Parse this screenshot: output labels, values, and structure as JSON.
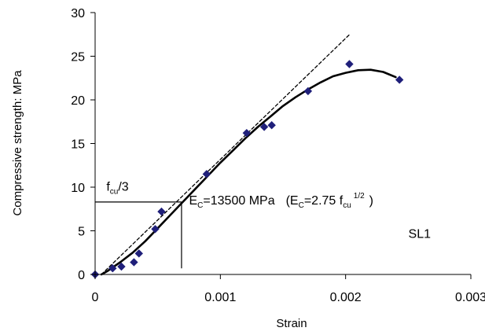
{
  "chart_data": {
    "type": "scatter",
    "title": "",
    "xlabel": "Strain",
    "ylabel": "Compressive strength: MPa",
    "xlim": [
      0,
      0.003
    ],
    "ylim": [
      0,
      30
    ],
    "x_ticks": [
      0,
      0.001,
      0.002,
      0.003
    ],
    "x_tick_labels": [
      "0",
      "0.001",
      "0.002",
      "0.003"
    ],
    "y_ticks": [
      0,
      5,
      10,
      15,
      20,
      25,
      30
    ],
    "y_tick_labels": [
      "0",
      "5",
      "10",
      "15",
      "20",
      "25",
      "30"
    ],
    "grid": false,
    "legend": "none",
    "series": [
      {
        "kind": "scatter",
        "marker": "diamond",
        "color": "#1f1f7a",
        "points": [
          [
            0.0,
            0.0
          ],
          [
            0.00014,
            0.7
          ],
          [
            0.00021,
            0.9
          ],
          [
            0.00031,
            1.4
          ],
          [
            0.00035,
            2.4
          ],
          [
            0.00048,
            5.2
          ],
          [
            0.00053,
            7.2
          ],
          [
            0.00089,
            11.5
          ],
          [
            0.00121,
            16.2
          ],
          [
            0.00135,
            16.9
          ],
          [
            0.00141,
            17.1
          ],
          [
            0.0017,
            21.0
          ],
          [
            0.00203,
            24.1
          ],
          [
            0.00243,
            22.3
          ]
        ]
      },
      {
        "kind": "line",
        "style": "solid",
        "color": "#000000",
        "points": [
          [
            5e-05,
            0.0
          ],
          [
            0.0001,
            0.4
          ],
          [
            0.0002,
            1.4
          ],
          [
            0.0003,
            2.5
          ],
          [
            0.0004,
            3.8
          ],
          [
            0.0005,
            5.3
          ],
          [
            0.0006,
            6.8
          ],
          [
            0.0007,
            8.3
          ],
          [
            0.0008,
            9.8
          ],
          [
            0.0009,
            11.3
          ],
          [
            0.001,
            12.8
          ],
          [
            0.0011,
            14.2
          ],
          [
            0.0012,
            15.6
          ],
          [
            0.0013,
            16.9
          ],
          [
            0.0014,
            18.1
          ],
          [
            0.0015,
            19.3
          ],
          [
            0.0016,
            20.3
          ],
          [
            0.0017,
            21.2
          ],
          [
            0.0018,
            22.0
          ],
          [
            0.0019,
            22.7
          ],
          [
            0.002,
            23.1
          ],
          [
            0.0021,
            23.4
          ],
          [
            0.0022,
            23.45
          ],
          [
            0.0023,
            23.2
          ],
          [
            0.0024,
            22.6
          ]
        ]
      },
      {
        "kind": "line",
        "style": "dashed",
        "color": "#000000",
        "points": [
          [
            5e-05,
            0.0
          ],
          [
            0.00204,
            27.6
          ]
        ]
      }
    ],
    "reference_lines": {
      "color": "#000000",
      "y_value": 8.3,
      "x_value": 0.00069
    },
    "annotations": {
      "fcu_third": {
        "base": "f",
        "sub": "cu",
        "rest": "/3",
        "x": 9e-05,
        "y": 9.6
      },
      "ec": {
        "e1": "E",
        "c1": "C",
        "val": "=13500 MPa",
        "paren_open": "(",
        "e2": "E",
        "c2": "C",
        "val2": "=2.75 f",
        "cu": "cu",
        "sup": "1/2",
        "paren_close": ")",
        "x": 0.00075,
        "y": 8.0
      },
      "specimen": {
        "text": "SL1",
        "x": 0.00268,
        "y": 4.2
      }
    }
  }
}
